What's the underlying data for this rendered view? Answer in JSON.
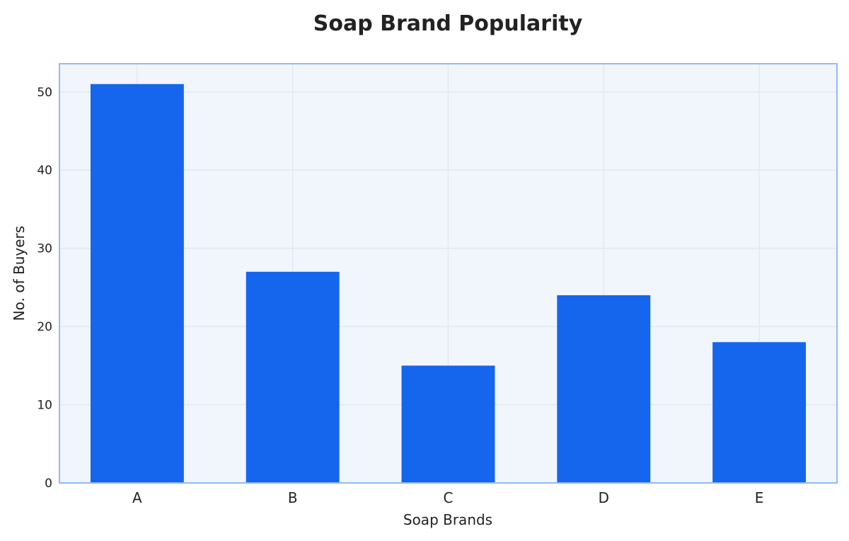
{
  "chart_data": {
    "type": "bar",
    "title": "Soap Brand Popularity",
    "xlabel": "Soap Brands",
    "ylabel": "No. of Buyers",
    "categories": [
      "A",
      "B",
      "C",
      "D",
      "E"
    ],
    "values": [
      51,
      27,
      15,
      24,
      18
    ],
    "ylim": [
      0,
      53.6
    ],
    "yticks": [
      0,
      10,
      20,
      30,
      40,
      50
    ],
    "grid": true,
    "colors": {
      "bar": "#1565ed",
      "plot_background": "#f1f6fd",
      "plot_border": "#93b9f1",
      "grid": "#e1e9f5",
      "text": "#222222"
    }
  }
}
